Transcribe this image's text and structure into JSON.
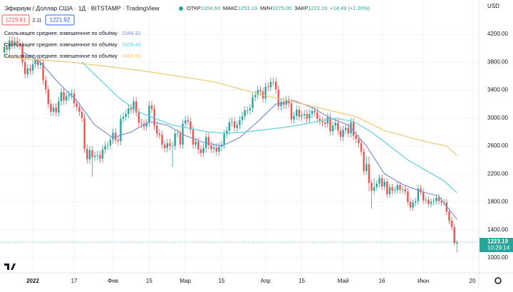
{
  "header": {
    "symbol": "Эфириум / Доллар США · 1Д · BITSTAMP · TradingView",
    "ohlc": [
      {
        "label": "ОТКР",
        "value": "1204.60"
      },
      {
        "label": "МАКС",
        "value": "1253.19"
      },
      {
        "label": "МИН",
        "value": "1075.00"
      },
      {
        "label": "ЗАКР",
        "value": "1223.19"
      }
    ],
    "change": "+14.49 (+1.20%)",
    "bid": "1219.81",
    "spread": "2.11",
    "ask": "1221.92",
    "currency": "USD"
  },
  "chart_data": {
    "type": "candlestick",
    "up_color": "#26a69a",
    "down_color": "#ef5350",
    "grid": true,
    "x": [
      -11,
      -10,
      -9,
      -8,
      -7,
      -6,
      -5,
      -4,
      -3,
      -2,
      -1,
      0,
      1,
      2,
      3,
      4,
      5,
      6,
      7,
      8,
      9,
      10,
      11,
      12,
      13,
      14,
      15,
      16,
      17,
      18,
      19,
      20,
      21,
      22,
      23,
      24,
      25,
      26,
      27,
      28,
      29,
      30,
      31,
      32,
      33,
      34,
      35,
      36,
      37,
      38,
      39,
      40,
      41,
      42,
      43,
      44,
      45,
      46,
      47,
      48,
      49,
      50,
      51,
      52,
      53,
      54,
      55,
      56,
      57,
      58,
      59,
      60,
      61,
      62,
      63,
      64,
      65,
      66,
      67,
      68,
      69,
      70,
      71,
      72,
      73,
      74,
      75,
      76,
      77,
      78,
      79,
      80,
      81,
      82,
      83,
      84,
      85,
      86,
      87,
      88,
      89,
      90,
      91,
      92,
      93,
      94,
      95,
      96,
      97,
      98,
      99,
      100,
      101,
      102,
      103,
      104,
      105,
      106,
      107,
      108,
      109,
      110,
      111,
      112,
      113,
      114,
      115,
      116,
      117,
      118,
      119,
      120,
      121,
      122,
      123,
      124,
      125,
      126,
      127,
      128,
      129,
      130,
      131,
      132,
      133,
      134,
      135,
      136,
      137,
      138,
      139,
      140,
      141,
      142,
      143,
      144,
      145,
      146,
      147,
      148,
      149,
      150,
      151,
      152,
      153,
      154,
      155,
      156,
      157,
      158,
      159,
      160,
      161,
      162,
      163,
      164
    ],
    "open": [
      3940,
      4020,
      3980,
      4110,
      4050,
      4100,
      4070,
      4040,
      3800,
      3630,
      3710,
      3680,
      3770,
      3830,
      3760,
      3790,
      3540,
      3410,
      3200,
      3090,
      3150,
      3080,
      3240,
      3370,
      3250,
      3310,
      3330,
      3350,
      3210,
      3160,
      3090,
      3000,
      2560,
      2410,
      2540,
      2440,
      2460,
      2470,
      2420,
      2550,
      2600,
      2610,
      2690,
      2790,
      2690,
      2670,
      2990,
      3020,
      3060,
      3140,
      3120,
      3240,
      3080,
      2930,
      2920,
      2880,
      2930,
      3180,
      3130,
      2890,
      2780,
      2760,
      2620,
      2570,
      2640,
      2600,
      2600,
      2780,
      2780,
      2620,
      2920,
      2970,
      2950,
      2830,
      2620,
      2660,
      2550,
      2500,
      2570,
      2730,
      2610,
      2560,
      2580,
      2520,
      2590,
      2620,
      2770,
      2820,
      2940,
      2950,
      2860,
      2900,
      2970,
      3030,
      3110,
      3110,
      3140,
      3300,
      3330,
      3400,
      3380,
      3280,
      3450,
      3440,
      3520,
      3520,
      3410,
      3170,
      3230,
      3190,
      3260,
      3210,
      2980,
      3030,
      3120,
      3020,
      3040,
      3060,
      2990,
      3060,
      3100,
      3080,
      2990,
      2960,
      2940,
      2920,
      3010,
      2810,
      2890,
      2930,
      2820,
      2730,
      2830,
      2860,
      2780,
      2940,
      2750,
      2700,
      2640,
      2520,
      2240,
      2340,
      2070,
      1960,
      2010,
      2060,
      2140,
      2020,
      2090,
      1910,
      2010,
      1960,
      1970,
      2040,
      1970,
      1980,
      1950,
      1800,
      1720,
      1790,
      1810,
      1990,
      1940,
      1820,
      1830,
      1770,
      1800,
      1810,
      1860,
      1810,
      1790,
      1790,
      1660,
      1530,
      1440,
      1204.6
    ],
    "high": [
      4080,
      4080,
      4170,
      4170,
      4160,
      4160,
      4130,
      4100,
      3860,
      3770,
      3770,
      3830,
      3890,
      3890,
      3850,
      3850,
      3600,
      3470,
      3260,
      3210,
      3210,
      3300,
      3430,
      3430,
      3370,
      3390,
      3410,
      3410,
      3270,
      3220,
      3150,
      3060,
      2620,
      2600,
      2600,
      2520,
      2530,
      2530,
      2610,
      2660,
      2670,
      2750,
      2850,
      2850,
      2750,
      3050,
      3080,
      3120,
      3200,
      3200,
      3300,
      3300,
      3140,
      2990,
      2980,
      2990,
      3240,
      3240,
      3190,
      2950,
      2840,
      2820,
      2680,
      2700,
      2700,
      2660,
      2840,
      2840,
      2840,
      2980,
      3030,
      3030,
      3010,
      2890,
      2720,
      2720,
      2610,
      2630,
      2790,
      2790,
      2670,
      2640,
      2640,
      2650,
      2680,
      2830,
      2880,
      3000,
      3010,
      3010,
      2960,
      3030,
      3090,
      3170,
      3170,
      3200,
      3360,
      3390,
      3460,
      3460,
      3440,
      3510,
      3510,
      3580,
      3580,
      3580,
      3470,
      3290,
      3290,
      3320,
      3320,
      3270,
      3090,
      3180,
      3180,
      3100,
      3120,
      3120,
      3120,
      3160,
      3160,
      3140,
      3050,
      3020,
      3000,
      3070,
      3070,
      2950,
      2990,
      2990,
      2880,
      2890,
      2920,
      2920,
      3000,
      3000,
      2810,
      2760,
      2700,
      2570,
      2450,
      2450,
      2120,
      2140,
      2110,
      2190,
      2190,
      2140,
      2140,
      2060,
      2060,
      2020,
      2090,
      2090,
      2030,
      2030,
      2000,
      1850,
      1840,
      1860,
      2040,
      2040,
      1990,
      1880,
      1880,
      1850,
      1860,
      1910,
      1910,
      1860,
      1840,
      1840,
      1710,
      1580,
      1490,
      1253.19
    ],
    "low": [
      3880,
      3920,
      3920,
      3990,
      3990,
      4010,
      3980,
      3740,
      3570,
      3570,
      3620,
      3620,
      3710,
      3700,
      3700,
      3480,
      3350,
      3140,
      3030,
      3030,
      3020,
      3020,
      3180,
      3190,
      3190,
      3250,
      3270,
      3150,
      3100,
      3030,
      2940,
      2500,
      2350,
      2350,
      2160,
      2380,
      2400,
      2360,
      2360,
      2490,
      2540,
      2550,
      2630,
      2630,
      2610,
      2610,
      2930,
      2960,
      3000,
      3060,
      3060,
      3020,
      2870,
      2860,
      2820,
      2820,
      2870,
      3070,
      2830,
      2720,
      2700,
      2560,
      2510,
      2510,
      2540,
      2300,
      2540,
      2720,
      2560,
      2560,
      2860,
      2890,
      2770,
      2560,
      2560,
      2490,
      2440,
      2440,
      2510,
      2550,
      2500,
      2500,
      2460,
      2460,
      2530,
      2560,
      2710,
      2760,
      2880,
      2800,
      2800,
      2840,
      2910,
      2970,
      3050,
      3050,
      3080,
      3240,
      3270,
      3320,
      3220,
      3220,
      3380,
      3380,
      3460,
      3350,
      3110,
      3110,
      3130,
      3130,
      3150,
      2920,
      2920,
      2970,
      2960,
      2960,
      2980,
      2930,
      2930,
      3000,
      3020,
      2930,
      2900,
      2880,
      2860,
      2860,
      2750,
      2750,
      2830,
      2760,
      2670,
      2670,
      2770,
      2720,
      2720,
      2690,
      2640,
      2580,
      2460,
      2190,
      2190,
      1950,
      1700,
      1910,
      1960,
      2010,
      1970,
      1970,
      1860,
      1860,
      1910,
      1910,
      1920,
      1920,
      1920,
      1900,
      1750,
      1670,
      1670,
      1740,
      1760,
      1890,
      1770,
      1770,
      1720,
      1720,
      1750,
      1760,
      1760,
      1740,
      1740,
      1610,
      1480,
      1390,
      1170,
      1075
    ],
    "close": [
      4020,
      3980,
      4110,
      4050,
      4100,
      4070,
      4040,
      3800,
      3630,
      3710,
      3680,
      3770,
      3830,
      3760,
      3790,
      3540,
      3410,
      3200,
      3090,
      3150,
      3080,
      3240,
      3370,
      3250,
      3310,
      3330,
      3350,
      3210,
      3160,
      3090,
      3000,
      2560,
      2410,
      2540,
      2440,
      2460,
      2470,
      2420,
      2550,
      2600,
      2610,
      2690,
      2790,
      2690,
      2670,
      2990,
      3020,
      3060,
      3140,
      3120,
      3240,
      3080,
      2930,
      2920,
      2880,
      2930,
      3180,
      3130,
      2890,
      2780,
      2760,
      2620,
      2570,
      2640,
      2600,
      2600,
      2780,
      2780,
      2620,
      2920,
      2970,
      2950,
      2830,
      2620,
      2660,
      2550,
      2500,
      2570,
      2730,
      2610,
      2560,
      2580,
      2520,
      2590,
      2620,
      2770,
      2820,
      2940,
      2950,
      2860,
      2900,
      2970,
      3030,
      3110,
      3110,
      3140,
      3300,
      3330,
      3400,
      3380,
      3280,
      3450,
      3440,
      3520,
      3520,
      3410,
      3170,
      3230,
      3190,
      3260,
      3210,
      2980,
      3030,
      3120,
      3020,
      3040,
      3060,
      2990,
      3060,
      3100,
      3080,
      2990,
      2960,
      2940,
      2920,
      3010,
      2810,
      2890,
      2930,
      2820,
      2730,
      2830,
      2860,
      2780,
      2940,
      2750,
      2700,
      2640,
      2520,
      2240,
      2340,
      2070,
      1960,
      2010,
      2060,
      2140,
      2020,
      2090,
      1910,
      2010,
      1960,
      1970,
      2040,
      1970,
      1980,
      1950,
      1800,
      1720,
      1790,
      1810,
      1990,
      1940,
      1820,
      1830,
      1770,
      1800,
      1810,
      1860,
      1810,
      1790,
      1790,
      1660,
      1530,
      1440,
      1210,
      1223.19
    ],
    "series": [
      {
        "name": "Скользящее среднее, взвешенное по объёму",
        "color": "#7f8fd6",
        "last_label": "1549.31",
        "x": [
          -4,
          3,
          10,
          17,
          24,
          31,
          38,
          45,
          52,
          59,
          66,
          73,
          80,
          87,
          94,
          101,
          108,
          115,
          122,
          129,
          136,
          143,
          150,
          157,
          164
        ],
        "values": [
          3950,
          3800,
          3500,
          3250,
          2900,
          2720,
          2800,
          2950,
          2900,
          2750,
          2650,
          2600,
          2720,
          2950,
          3200,
          3250,
          3150,
          3000,
          2900,
          2600,
          2200,
          2050,
          1950,
          1880,
          1549.31
        ]
      },
      {
        "name": "Скользящее среднее, взвешенное по объёму",
        "color": "#5fd0e0",
        "last_label": "1929.43",
        "x": [
          19,
          26,
          33,
          40,
          47,
          54,
          61,
          68,
          75,
          82,
          89,
          96,
          103,
          110,
          117,
          124,
          131,
          138,
          145,
          152,
          159,
          164
        ],
        "values": [
          3800,
          3550,
          3300,
          3100,
          3000,
          2900,
          2850,
          2800,
          2780,
          2800,
          2830,
          2860,
          2900,
          2950,
          3000,
          2950,
          2800,
          2600,
          2400,
          2250,
          2100,
          1929.43
        ]
      },
      {
        "name": "Скользящее среднее, взвешенное по объёму",
        "color": "#f3c56f",
        "last_label": "2465.50",
        "x": [
          -11,
          15,
          42,
          70,
          89,
          108,
          125,
          136,
          152,
          160,
          164
        ],
        "values": [
          3870,
          3800,
          3680,
          3520,
          3330,
          3170,
          3020,
          2820,
          2660,
          2600,
          2465.5
        ]
      }
    ],
    "last_price": {
      "value": 1223.19,
      "label": "1223.19",
      "time": "10:29:14"
    },
    "xlim": [
      -12.67,
      172.45
    ],
    "xticks": [
      {
        "value": 0,
        "label": "2022"
      },
      {
        "value": 16,
        "label": "17"
      },
      {
        "value": 31,
        "label": "Фев"
      },
      {
        "value": 45,
        "label": "15"
      },
      {
        "value": 59,
        "label": "Мар"
      },
      {
        "value": 73,
        "label": "15"
      },
      {
        "value": 90,
        "label": "Апр"
      },
      {
        "value": 104,
        "label": "15"
      },
      {
        "value": 120,
        "label": "Май"
      },
      {
        "value": 135,
        "label": "16"
      },
      {
        "value": 151,
        "label": "Июн"
      },
      {
        "value": 170,
        "label": "20"
      }
    ],
    "ylim": [
      785,
      4690
    ],
    "yticks": [
      {
        "value": 1000,
        "label": "1000.00"
      },
      {
        "value": 1400,
        "label": "1400.00"
      },
      {
        "value": 1800,
        "label": "1800.00"
      },
      {
        "value": 2200,
        "label": "2200.00"
      },
      {
        "value": 2600,
        "label": "2600.00"
      },
      {
        "value": 3000,
        "label": "3000.00"
      },
      {
        "value": 3400,
        "label": "3400.00"
      },
      {
        "value": 3800,
        "label": "3800.00"
      },
      {
        "value": 4200,
        "label": "4200.00"
      }
    ]
  }
}
